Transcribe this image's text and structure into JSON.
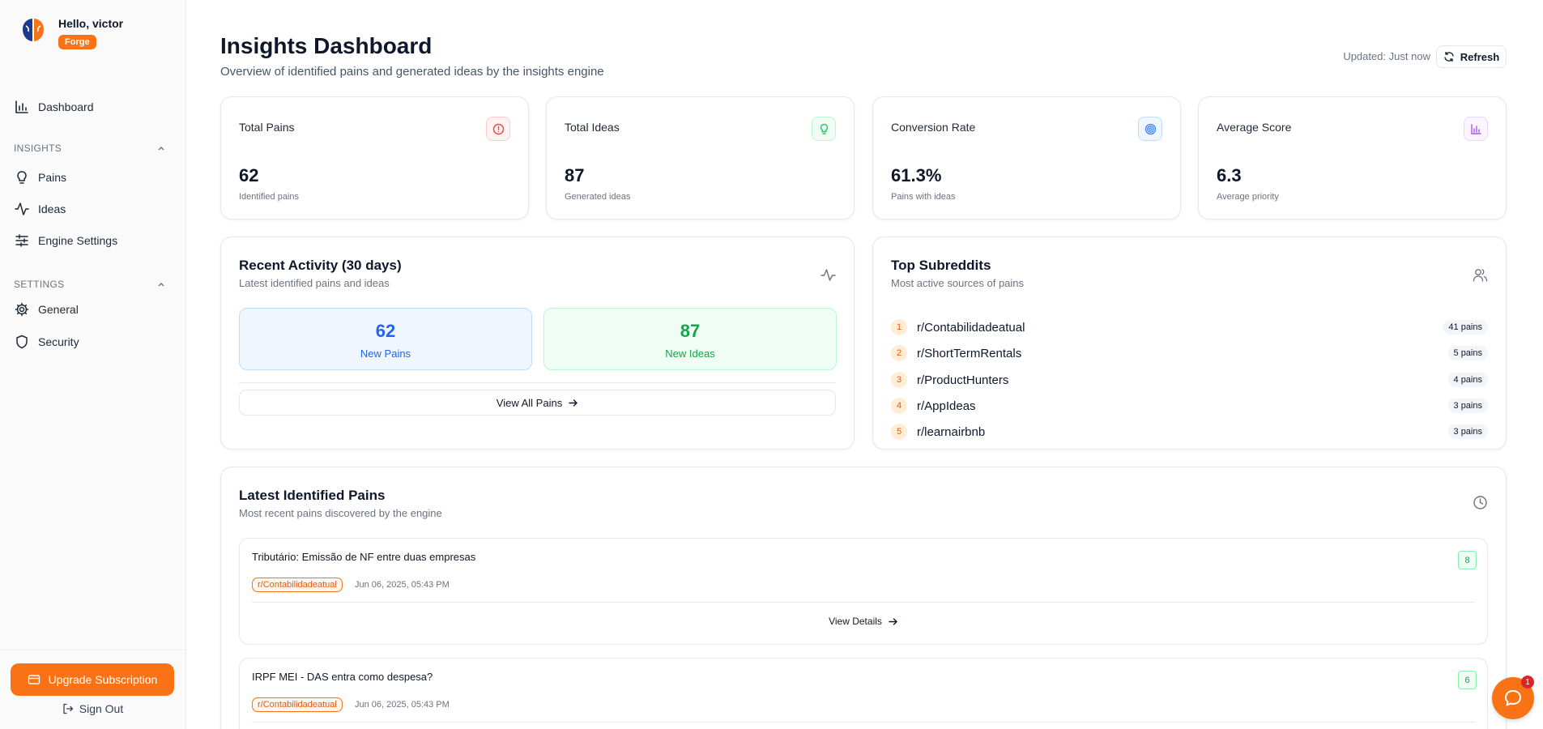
{
  "user": {
    "greeting": "Hello, victor",
    "plan": "Forge"
  },
  "sidebar": {
    "dashboard_label": "Dashboard",
    "insights_section": "INSIGHTS",
    "insights_items": [
      {
        "label": "Pains",
        "icon": "lightbulb-icon"
      },
      {
        "label": "Ideas",
        "icon": "activity-icon"
      },
      {
        "label": "Engine Settings",
        "icon": "sliders-icon"
      }
    ],
    "settings_section": "SETTINGS",
    "settings_items": [
      {
        "label": "General",
        "icon": "gear-icon"
      },
      {
        "label": "Security",
        "icon": "shield-icon"
      }
    ],
    "upgrade_label": "Upgrade Subscription",
    "signout_label": "Sign Out"
  },
  "header": {
    "title": "Insights Dashboard",
    "subtitle": "Overview of identified pains and generated ideas by the insights engine",
    "updated": "Updated: Just now",
    "refresh_label": "Refresh"
  },
  "stats": [
    {
      "title": "Total Pains",
      "value": "62",
      "sub": "Identified pains",
      "icon": "alert-circle-icon",
      "color": "#ef4444"
    },
    {
      "title": "Total Ideas",
      "value": "87",
      "sub": "Generated ideas",
      "icon": "lightbulb-icon",
      "color": "#22c55e"
    },
    {
      "title": "Conversion Rate",
      "value": "61.3%",
      "sub": "Pains with ideas",
      "icon": "target-icon",
      "color": "#3b82f6"
    },
    {
      "title": "Average Score",
      "value": "6.3",
      "sub": "Average priority",
      "icon": "bar-chart-icon",
      "color": "#a855f7"
    }
  ],
  "recent_activity": {
    "title": "Recent Activity (30 days)",
    "subtitle": "Latest identified pains and ideas",
    "new_pains_value": "62",
    "new_pains_label": "New Pains",
    "new_ideas_value": "87",
    "new_ideas_label": "New Ideas",
    "view_all_label": "View All Pains"
  },
  "top_subreddits": {
    "title": "Top Subreddits",
    "subtitle": "Most active sources of pains",
    "items": [
      {
        "rank": "1",
        "name": "r/Contabilidadeatual",
        "count": "41 pains"
      },
      {
        "rank": "2",
        "name": "r/ShortTermRentals",
        "count": "5 pains"
      },
      {
        "rank": "3",
        "name": "r/ProductHunters",
        "count": "4 pains"
      },
      {
        "rank": "4",
        "name": "r/AppIdeas",
        "count": "3 pains"
      },
      {
        "rank": "5",
        "name": "r/learnairbnb",
        "count": "3 pains"
      }
    ]
  },
  "latest_pains": {
    "title": "Latest Identified Pains",
    "subtitle": "Most recent pains discovered by the engine",
    "view_details_label": "View Details",
    "items": [
      {
        "title": "Tributário: Emissão de NF entre duas empresas",
        "subreddit": "r/Contabilidadeatual",
        "date": "Jun 06, 2025, 05:43 PM",
        "score": "8"
      },
      {
        "title": "IRPF MEI - DAS entra como despesa?",
        "subreddit": "r/Contabilidadeatual",
        "date": "Jun 06, 2025, 05:43 PM",
        "score": "6"
      }
    ]
  },
  "chat": {
    "unread": "1"
  },
  "colors": {
    "accent": "#f97316",
    "pains_blue": "#2563eb",
    "ideas_green": "#16a34a"
  }
}
